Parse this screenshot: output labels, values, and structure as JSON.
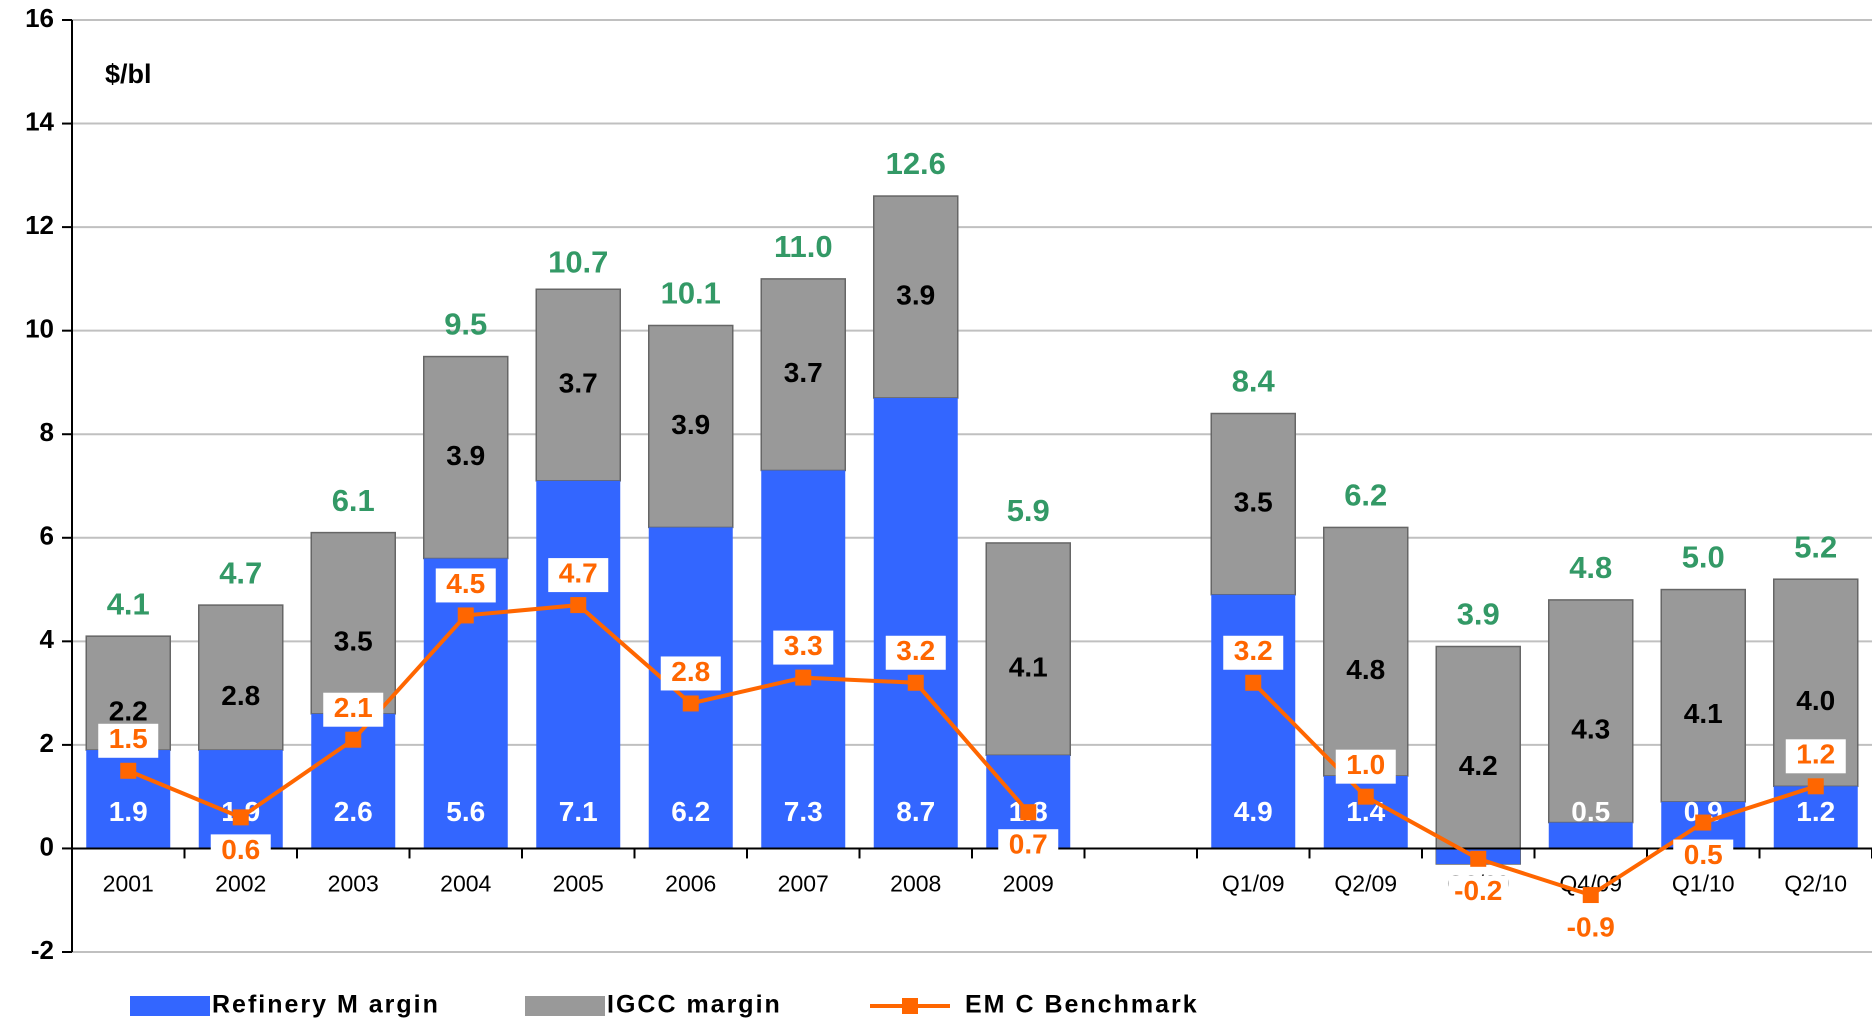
{
  "chart_data": {
    "type": "bar",
    "y_label": "$/bl",
    "categories": [
      "2001",
      "2002",
      "2003",
      "2004",
      "2005",
      "2006",
      "2007",
      "2008",
      "2009",
      null,
      "Q1/09",
      "Q2/09",
      "Q3/09",
      "Q4/09",
      "Q1/10",
      "Q2/10"
    ],
    "series": [
      {
        "name": "Refinery M argin",
        "color": "#3366ff",
        "kind": "bar",
        "values": [
          1.9,
          1.9,
          2.6,
          5.6,
          7.1,
          6.2,
          7.3,
          8.7,
          1.8,
          null,
          4.9,
          1.4,
          -0.3,
          0.5,
          0.9,
          1.2
        ],
        "value_labels": [
          "1.9",
          "1.9",
          "2.6",
          "5.6",
          "7.1",
          "6.2",
          "7.3",
          "8.7",
          "1.8",
          null,
          "4.9",
          "1.4",
          null,
          "0.5",
          "0.9",
          "1.2"
        ]
      },
      {
        "name": "IGCC margin",
        "color": "#999999",
        "kind": "bar",
        "values": [
          2.2,
          2.8,
          3.5,
          3.9,
          3.7,
          3.9,
          3.7,
          3.9,
          4.1,
          null,
          3.5,
          4.8,
          4.2,
          4.3,
          4.1,
          4.0
        ],
        "value_labels": [
          "2.2",
          "2.8",
          "3.5",
          "3.9",
          "3.7",
          "3.9",
          "3.7",
          "3.9",
          "4.1",
          null,
          "3.5",
          "4.8",
          "4.2",
          "4.3",
          "4.1",
          "4.0"
        ]
      },
      {
        "name": "EM C Benchmark",
        "color": "#ff6600",
        "kind": "line",
        "values": [
          1.5,
          0.6,
          2.1,
          4.5,
          4.7,
          2.8,
          3.3,
          3.2,
          0.7,
          null,
          3.2,
          1.0,
          -0.2,
          -0.9,
          0.5,
          1.2
        ],
        "value_labels": [
          "1.5",
          "0.6",
          "2.1",
          "4.5",
          "4.7",
          "2.8",
          "3.3",
          "3.2",
          "0.7",
          null,
          "3.2",
          "1.0",
          "-0.2",
          "-0.9",
          "0.5",
          "1.2"
        ]
      }
    ],
    "totals": {
      "color": "#339966",
      "values": [
        4.1,
        4.7,
        6.1,
        9.5,
        10.7,
        10.1,
        11.0,
        12.6,
        5.9,
        null,
        8.4,
        6.2,
        3.9,
        4.8,
        5.0,
        5.2
      ],
      "value_labels": [
        "4.1",
        "4.7",
        "6.1",
        "9.5",
        "10.7",
        "10.1",
        "11.0",
        "12.6",
        "5.9",
        null,
        "8.4",
        "6.2",
        "3.9",
        "4.8",
        "5.0",
        "5.2"
      ]
    },
    "ylim": [
      -2,
      16
    ],
    "yticks": [
      -2,
      0,
      2,
      4,
      6,
      8,
      10,
      12,
      14,
      16
    ],
    "grid": true,
    "legend": "bottom"
  }
}
